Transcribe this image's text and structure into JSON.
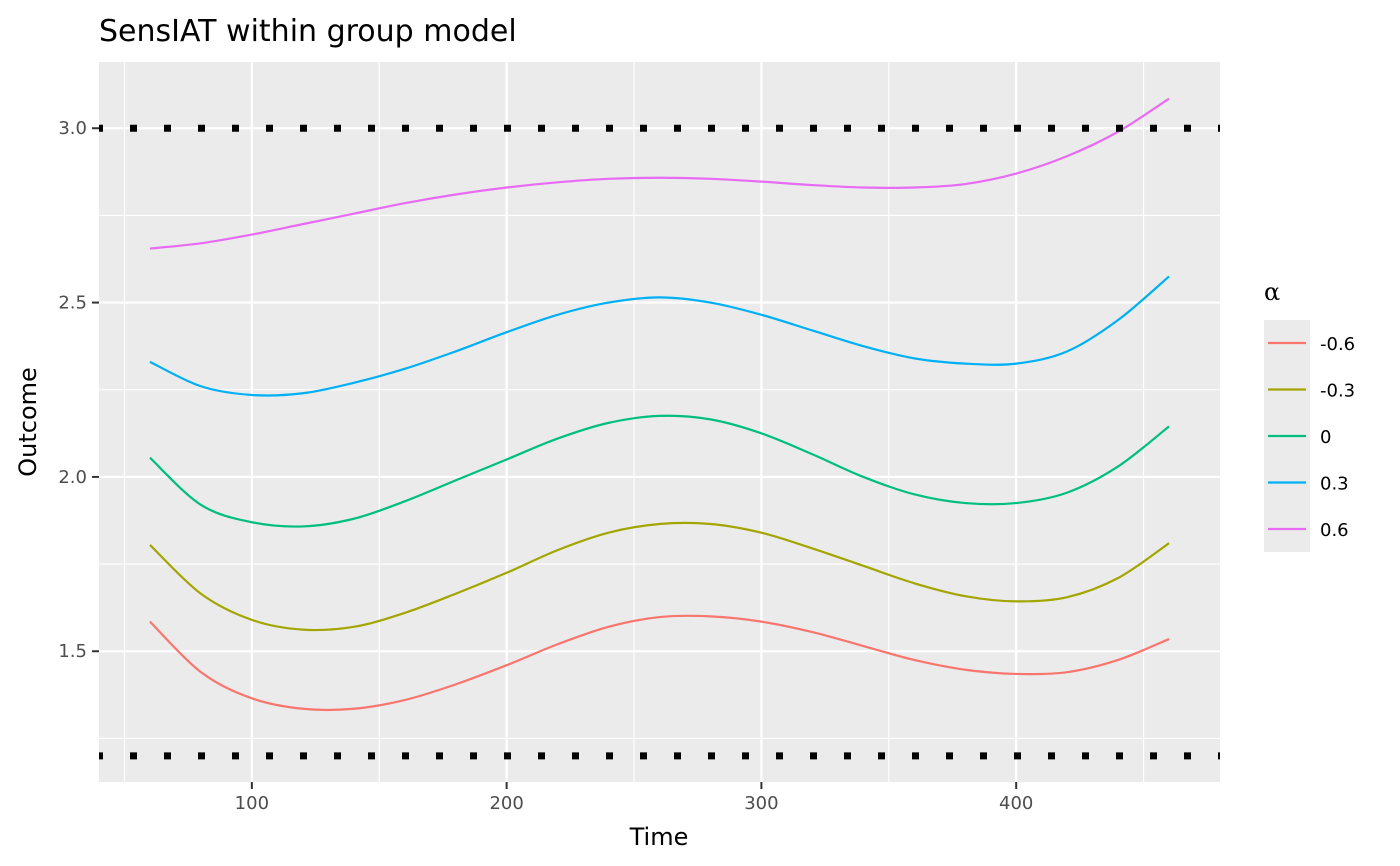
{
  "chart_data": {
    "type": "line",
    "title": "SensIAT within group model",
    "xlabel": "Time",
    "ylabel": "Outcome",
    "xlim": [
      40,
      480
    ],
    "ylim": [
      1.125,
      3.19
    ],
    "x_ticks": [
      100,
      200,
      300,
      400
    ],
    "y_ticks": [
      1.5,
      2.0,
      2.5,
      3.0
    ],
    "x_tick_labels": [
      "100",
      "200",
      "300",
      "400"
    ],
    "y_tick_labels": [
      "1.5",
      "2.0",
      "2.5",
      "3.0"
    ],
    "grid": true,
    "legend": {
      "title": "α",
      "placement": "right"
    },
    "reference_lines": [
      {
        "y": 3.0,
        "style": "dotted",
        "color": "#000000"
      },
      {
        "y": 1.2,
        "style": "dotted",
        "color": "#000000"
      }
    ],
    "x": [
      60,
      80,
      100,
      120,
      140,
      160,
      180,
      200,
      220,
      240,
      260,
      280,
      300,
      320,
      340,
      360,
      380,
      400,
      420,
      440,
      460
    ],
    "series": [
      {
        "name": "-0.6",
        "color": "#F8766D",
        "values": [
          1.585,
          1.44,
          1.365,
          1.335,
          1.335,
          1.36,
          1.405,
          1.46,
          1.52,
          1.57,
          1.598,
          1.6,
          1.585,
          1.555,
          1.515,
          1.475,
          1.447,
          1.435,
          1.44,
          1.475,
          1.535
        ]
      },
      {
        "name": "-0.3",
        "color": "#A3A500",
        "values": [
          1.805,
          1.665,
          1.59,
          1.562,
          1.57,
          1.61,
          1.665,
          1.725,
          1.79,
          1.84,
          1.865,
          1.865,
          1.84,
          1.795,
          1.745,
          1.695,
          1.658,
          1.643,
          1.655,
          1.71,
          1.81
        ]
      },
      {
        "name": "0",
        "color": "#00BF7D",
        "values": [
          2.055,
          1.92,
          1.87,
          1.858,
          1.88,
          1.93,
          1.99,
          2.05,
          2.11,
          2.155,
          2.175,
          2.165,
          2.125,
          2.065,
          2.0,
          1.95,
          1.925,
          1.925,
          1.955,
          2.03,
          2.145
        ]
      },
      {
        "name": "0.3",
        "color": "#00B0F6",
        "values": [
          2.33,
          2.26,
          2.235,
          2.24,
          2.27,
          2.31,
          2.36,
          2.415,
          2.465,
          2.5,
          2.515,
          2.5,
          2.465,
          2.42,
          2.375,
          2.34,
          2.325,
          2.325,
          2.36,
          2.45,
          2.575
        ]
      },
      {
        "name": "0.6",
        "color": "#E76BF3",
        "values": [
          2.655,
          2.67,
          2.695,
          2.725,
          2.755,
          2.785,
          2.81,
          2.83,
          2.845,
          2.855,
          2.858,
          2.855,
          2.847,
          2.837,
          2.83,
          2.83,
          2.84,
          2.87,
          2.92,
          2.99,
          3.085
        ]
      }
    ]
  }
}
